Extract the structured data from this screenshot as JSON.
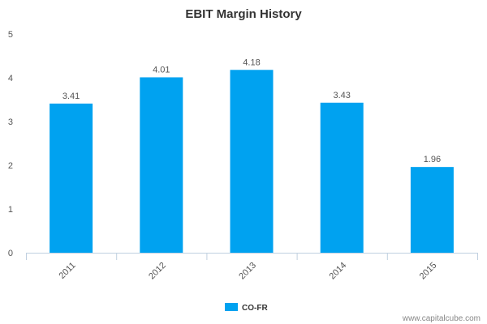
{
  "chart_data": {
    "type": "bar",
    "title": "EBIT Margin History",
    "categories": [
      "2011",
      "2012",
      "2013",
      "2014",
      "2015"
    ],
    "series": [
      {
        "name": "CO-FR",
        "values": [
          3.41,
          4.01,
          4.18,
          3.43,
          1.96
        ],
        "value_labels": [
          "3.41",
          "4.01",
          "4.18",
          "3.43",
          "1.96"
        ],
        "color": "#00a2f0"
      }
    ],
    "xlabel": "",
    "ylabel": "",
    "ylim": [
      0,
      5
    ],
    "yticks": [
      0,
      1,
      2,
      3,
      4,
      5
    ],
    "grid": false,
    "legend_position": "bottom-center",
    "x_tick_rotation": "-45deg"
  },
  "credit": "www.capitalcube.com",
  "colors": {
    "bar": "#00a2f0",
    "axis": "#c0d0e0",
    "text": "#555555",
    "title": "#333333"
  }
}
